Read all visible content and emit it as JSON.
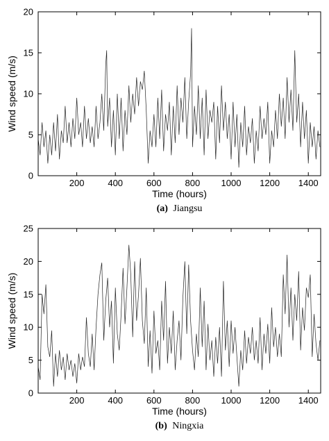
{
  "chart_data": [
    {
      "type": "line",
      "caption_tag": "(a)",
      "caption_text": "Jiangsu",
      "xlabel": "Time (hours)",
      "ylabel": "Wind speed (m/s)",
      "xlim": [
        0,
        1464
      ],
      "ylim": [
        0,
        20
      ],
      "xticks": [
        200,
        400,
        600,
        800,
        1000,
        1200,
        1400
      ],
      "yticks": [
        0,
        5,
        10,
        15,
        20
      ],
      "grid": false,
      "series": [
        {
          "color": "#222222",
          "x": [
            0,
            10,
            20,
            30,
            40,
            50,
            60,
            70,
            80,
            90,
            100,
            110,
            120,
            130,
            140,
            150,
            160,
            170,
            180,
            190,
            200,
            210,
            220,
            230,
            240,
            250,
            260,
            270,
            280,
            290,
            300,
            310,
            320,
            330,
            340,
            350,
            355,
            360,
            370,
            380,
            390,
            400,
            410,
            420,
            430,
            440,
            450,
            460,
            470,
            480,
            490,
            500,
            510,
            520,
            530,
            540,
            550,
            560,
            570,
            580,
            590,
            600,
            610,
            620,
            630,
            640,
            650,
            660,
            670,
            680,
            690,
            700,
            710,
            720,
            730,
            740,
            750,
            760,
            770,
            780,
            790,
            795,
            800,
            810,
            820,
            830,
            840,
            850,
            860,
            870,
            880,
            890,
            900,
            910,
            920,
            930,
            940,
            950,
            960,
            970,
            980,
            990,
            1000,
            1010,
            1020,
            1030,
            1040,
            1050,
            1060,
            1070,
            1080,
            1090,
            1100,
            1110,
            1120,
            1130,
            1140,
            1150,
            1160,
            1170,
            1180,
            1190,
            1200,
            1210,
            1220,
            1230,
            1240,
            1250,
            1260,
            1270,
            1280,
            1290,
            1300,
            1310,
            1320,
            1330,
            1340,
            1350,
            1360,
            1370,
            1380,
            1390,
            1400,
            1410,
            1420,
            1430,
            1440,
            1450,
            1460
          ],
          "y": [
            4.5,
            2.5,
            6.5,
            3.5,
            5.5,
            1.5,
            5.0,
            2.5,
            6.5,
            3.0,
            7.5,
            2.0,
            5.5,
            4.0,
            8.5,
            4.0,
            6.5,
            3.5,
            7.0,
            4.5,
            9.5,
            5.0,
            6.5,
            3.5,
            8.5,
            4.5,
            7.0,
            4.0,
            6.0,
            3.5,
            8.5,
            4.5,
            6.5,
            10.0,
            5.5,
            13.5,
            15.3,
            6.0,
            9.5,
            3.5,
            8.0,
            2.5,
            10.0,
            4.5,
            9.5,
            3.0,
            8.0,
            5.0,
            11.0,
            6.5,
            10.0,
            7.5,
            12.0,
            8.5,
            11.5,
            10.5,
            12.8,
            8.0,
            1.5,
            5.5,
            3.5,
            7.5,
            3.5,
            9.5,
            4.5,
            10.5,
            3.0,
            7.5,
            5.5,
            9.0,
            2.5,
            8.5,
            4.0,
            11.0,
            5.0,
            9.5,
            6.5,
            12.0,
            4.5,
            9.0,
            12.5,
            18.0,
            3.5,
            8.5,
            5.0,
            11.0,
            4.5,
            9.5,
            2.5,
            10.5,
            4.5,
            8.0,
            6.5,
            9.0,
            2.0,
            8.5,
            4.0,
            11.0,
            5.5,
            9.0,
            4.5,
            7.5,
            2.0,
            9.0,
            3.5,
            7.5,
            1.0,
            6.5,
            3.5,
            8.5,
            2.5,
            6.0,
            4.0,
            7.0,
            1.5,
            5.5,
            3.0,
            8.5,
            4.5,
            7.0,
            5.0,
            9.0,
            1.5,
            5.5,
            3.5,
            8.0,
            4.5,
            10.0,
            6.0,
            9.5,
            4.5,
            12.0,
            6.5,
            10.5,
            5.5,
            15.3,
            6.5,
            10.0,
            3.5,
            9.0,
            4.5,
            8.0,
            1.5,
            6.5,
            3.5,
            6.0,
            2.0,
            5.5,
            3.5
          ]
        }
      ]
    },
    {
      "type": "line",
      "caption_tag": "(b)",
      "caption_text": "Ningxia",
      "xlabel": "Time (hours)",
      "ylabel": "Wind speed (m/s)",
      "xlim": [
        0,
        1464
      ],
      "ylim": [
        0,
        25
      ],
      "xticks": [
        200,
        400,
        600,
        800,
        1000,
        1200,
        1400
      ],
      "yticks": [
        0,
        5,
        10,
        15,
        20,
        25
      ],
      "grid": false,
      "series": [
        {
          "color": "#222222",
          "x": [
            0,
            10,
            20,
            30,
            40,
            50,
            60,
            70,
            80,
            90,
            100,
            110,
            120,
            130,
            140,
            150,
            160,
            170,
            180,
            190,
            200,
            210,
            220,
            230,
            240,
            250,
            260,
            270,
            280,
            290,
            300,
            310,
            320,
            330,
            340,
            350,
            360,
            370,
            380,
            390,
            400,
            410,
            420,
            430,
            440,
            450,
            460,
            470,
            480,
            490,
            500,
            510,
            520,
            530,
            540,
            550,
            560,
            570,
            580,
            590,
            600,
            610,
            620,
            630,
            640,
            650,
            660,
            670,
            680,
            690,
            700,
            710,
            720,
            730,
            740,
            750,
            760,
            770,
            780,
            790,
            800,
            810,
            820,
            830,
            840,
            850,
            860,
            870,
            880,
            890,
            900,
            910,
            920,
            930,
            940,
            950,
            960,
            970,
            980,
            990,
            1000,
            1010,
            1020,
            1030,
            1040,
            1050,
            1060,
            1070,
            1080,
            1090,
            1100,
            1110,
            1120,
            1130,
            1140,
            1150,
            1160,
            1170,
            1180,
            1190,
            1200,
            1210,
            1220,
            1230,
            1240,
            1250,
            1260,
            1270,
            1280,
            1290,
            1300,
            1310,
            1320,
            1330,
            1340,
            1350,
            1360,
            1370,
            1380,
            1390,
            1400,
            1410,
            1420,
            1430,
            1440,
            1450,
            1460
          ],
          "y": [
            4.0,
            2.0,
            15.0,
            12.0,
            16.5,
            7.0,
            5.5,
            9.5,
            1.0,
            6.0,
            2.5,
            6.5,
            3.5,
            5.5,
            2.0,
            6.0,
            3.5,
            5.0,
            2.5,
            4.5,
            1.5,
            6.0,
            3.5,
            5.5,
            4.0,
            11.5,
            6.0,
            4.0,
            9.0,
            3.5,
            10.0,
            15.0,
            18.0,
            19.8,
            8.0,
            14.0,
            17.5,
            10.0,
            14.0,
            4.5,
            16.0,
            9.0,
            6.5,
            12.0,
            19.0,
            10.5,
            16.0,
            22.5,
            18.0,
            8.5,
            20.0,
            11.0,
            15.0,
            20.5,
            11.0,
            7.5,
            16.0,
            4.0,
            9.5,
            3.0,
            12.5,
            6.0,
            8.0,
            3.5,
            14.0,
            8.0,
            17.0,
            4.5,
            10.0,
            6.0,
            12.5,
            3.5,
            8.0,
            11.0,
            5.0,
            14.5,
            20.0,
            9.0,
            19.5,
            11.0,
            6.5,
            3.5,
            9.0,
            5.5,
            16.0,
            7.0,
            14.0,
            3.5,
            10.5,
            5.0,
            8.0,
            2.5,
            8.5,
            4.5,
            10.0,
            2.5,
            17.0,
            6.5,
            11.0,
            4.0,
            11.0,
            6.0,
            10.0,
            5.5,
            1.0,
            6.5,
            3.5,
            9.5,
            4.5,
            8.5,
            6.0,
            10.0,
            5.0,
            8.0,
            4.5,
            11.5,
            3.5,
            9.0,
            6.0,
            10.5,
            4.5,
            13.0,
            7.0,
            10.0,
            5.5,
            9.0,
            5.5,
            18.0,
            12.0,
            21.0,
            10.0,
            16.0,
            8.0,
            15.0,
            11.0,
            18.5,
            6.5,
            13.0,
            9.5,
            16.0,
            14.5,
            18.0,
            5.5,
            12.0,
            7.5,
            5.0,
            8.0
          ]
        }
      ]
    }
  ]
}
